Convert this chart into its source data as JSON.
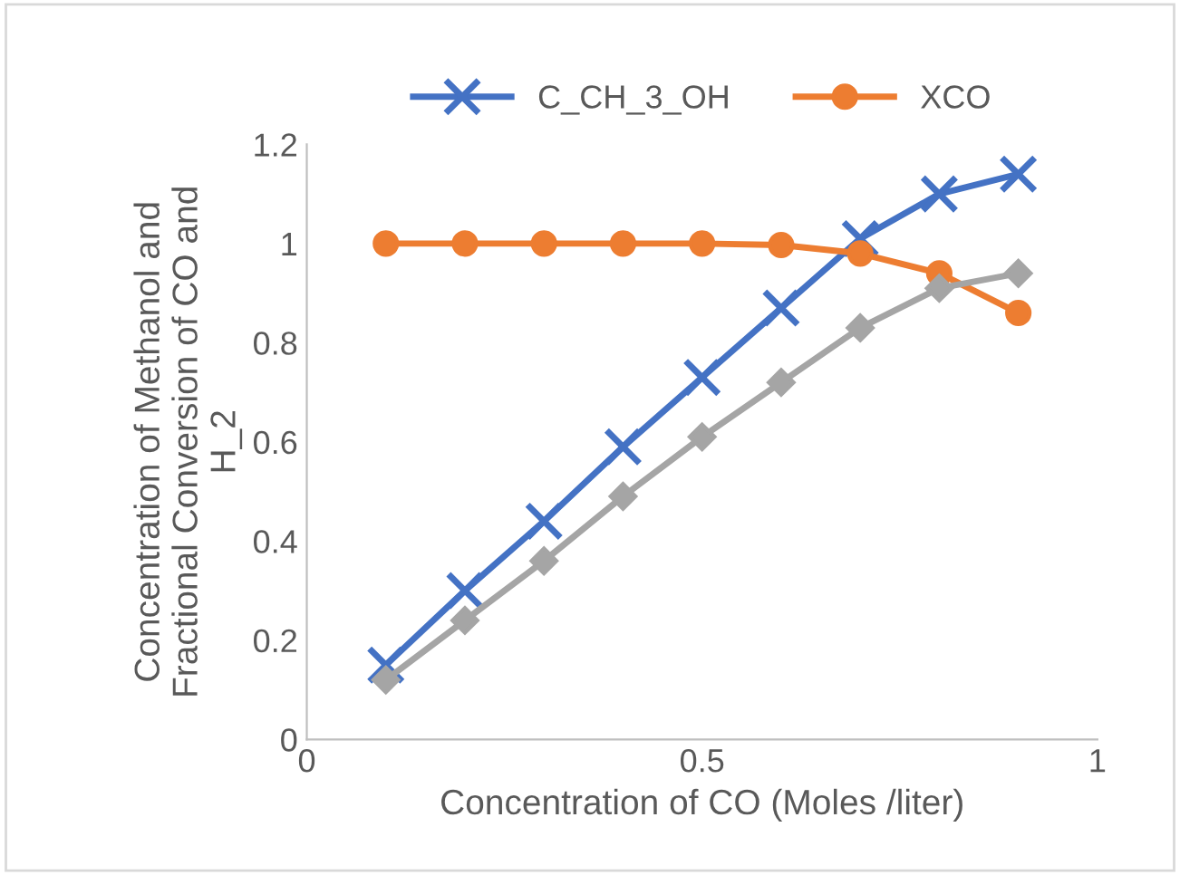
{
  "chart_data": {
    "type": "line",
    "xlabel": "Concentration of CO (Moles /liter)",
    "ylabel": "Concentration of Methanol and\nFractional Conversion of CO and\nH_2",
    "x": [
      0.1,
      0.2,
      0.3,
      0.4,
      0.5,
      0.6,
      0.7,
      0.8,
      0.9
    ],
    "series": [
      {
        "name": "C_CH_3_OH",
        "color": "#4472c4",
        "marker": "cross",
        "values": [
          0.15,
          0.3,
          0.44,
          0.59,
          0.73,
          0.87,
          1.01,
          1.1,
          1.14
        ]
      },
      {
        "name": "XCO",
        "color": "#ed7d31",
        "marker": "circle",
        "values": [
          1.0,
          1.0,
          1.0,
          1.0,
          1.0,
          0.997,
          0.98,
          0.94,
          0.86
        ]
      },
      {
        "color": "#a5a5a5",
        "marker": "diamond",
        "values": [
          0.12,
          0.24,
          0.36,
          0.49,
          0.61,
          0.72,
          0.83,
          0.91,
          0.94
        ]
      }
    ],
    "xlim": [
      0,
      1
    ],
    "xticks": [
      0,
      0.5,
      1
    ],
    "ylim": [
      0,
      1.2
    ],
    "yticks": [
      0,
      0.2,
      0.4,
      0.6,
      0.8,
      1,
      1.2
    ],
    "grid": false,
    "legend": "top"
  }
}
